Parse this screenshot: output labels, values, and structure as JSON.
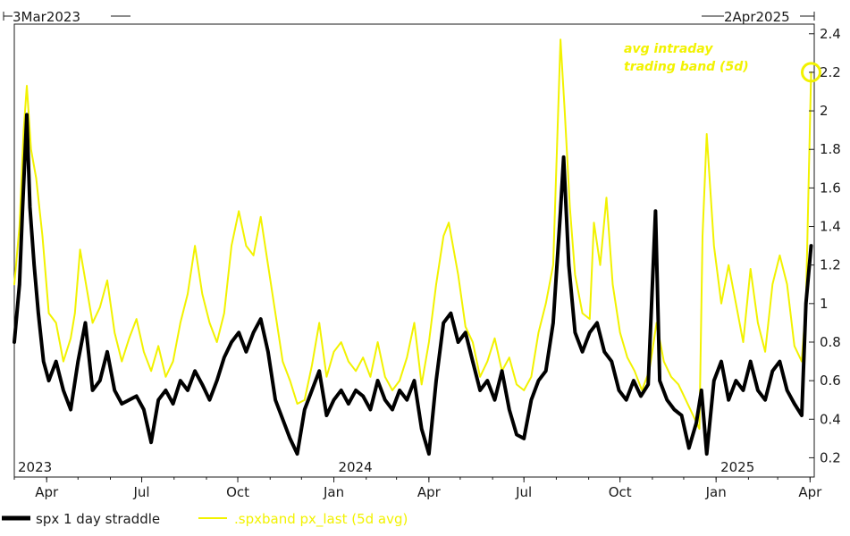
{
  "chart_data": {
    "type": "line",
    "title": "",
    "xlabel": "",
    "ylabel": "",
    "range_start_label": "3Mar2023",
    "range_end_label": "2Apr2025",
    "ylim": [
      0.1,
      2.45
    ],
    "y_ticks": [
      0.2,
      0.4,
      0.6,
      0.8,
      1,
      1.2,
      1.4,
      1.6,
      1.8,
      2,
      2.2,
      2.4
    ],
    "y_tick_labels": [
      "0.2",
      "0.4",
      "0.6",
      "0.8",
      "1",
      "1.2",
      "1.4",
      "1.6",
      "1.8",
      "2",
      "2.2",
      "2.4"
    ],
    "x_axis": {
      "start": "2023-03-01",
      "end": "2025-04-05",
      "month_ticks": [
        {
          "date": "2023-04-01",
          "label": "Apr"
        },
        {
          "date": "2023-07-01",
          "label": "Jul"
        },
        {
          "date": "2023-10-01",
          "label": "Oct"
        },
        {
          "date": "2024-01-01",
          "label": "Jan"
        },
        {
          "date": "2024-04-01",
          "label": "Apr"
        },
        {
          "date": "2024-07-01",
          "label": "Jul"
        },
        {
          "date": "2024-10-01",
          "label": "Oct"
        },
        {
          "date": "2025-01-01",
          "label": "Jan"
        },
        {
          "date": "2025-04-01",
          "label": "Apr"
        }
      ],
      "year_labels": [
        {
          "date": "2023-03-01",
          "label": "2023"
        },
        {
          "date": "2024-01-01",
          "label": "2024"
        },
        {
          "date": "2025-01-01",
          "label": "2025"
        }
      ]
    },
    "grid": false,
    "legend_position": "bottom",
    "annotation": {
      "line1": "avg intraday",
      "line2": "trading band (5d)",
      "series": ".spxband px_last (5d avg)",
      "date": "2025-04-02",
      "value": 2.2
    },
    "series": [
      {
        "name": ".spxband px_last (5d avg)",
        "color": "#f2f200",
        "points": [
          [
            "2023-03-01",
            1.1
          ],
          [
            "2023-03-06",
            1.4
          ],
          [
            "2023-03-10",
            1.9
          ],
          [
            "2023-03-13",
            2.13
          ],
          [
            "2023-03-17",
            1.8
          ],
          [
            "2023-03-22",
            1.65
          ],
          [
            "2023-03-28",
            1.35
          ],
          [
            "2023-04-03",
            0.95
          ],
          [
            "2023-04-10",
            0.9
          ],
          [
            "2023-04-17",
            0.7
          ],
          [
            "2023-04-24",
            0.82
          ],
          [
            "2023-04-28",
            0.95
          ],
          [
            "2023-05-03",
            1.28
          ],
          [
            "2023-05-08",
            1.12
          ],
          [
            "2023-05-15",
            0.9
          ],
          [
            "2023-05-22",
            0.98
          ],
          [
            "2023-05-29",
            1.12
          ],
          [
            "2023-06-05",
            0.85
          ],
          [
            "2023-06-12",
            0.7
          ],
          [
            "2023-06-19",
            0.82
          ],
          [
            "2023-06-26",
            0.92
          ],
          [
            "2023-07-03",
            0.75
          ],
          [
            "2023-07-10",
            0.65
          ],
          [
            "2023-07-17",
            0.78
          ],
          [
            "2023-07-24",
            0.62
          ],
          [
            "2023-07-31",
            0.7
          ],
          [
            "2023-08-07",
            0.9
          ],
          [
            "2023-08-14",
            1.05
          ],
          [
            "2023-08-21",
            1.3
          ],
          [
            "2023-08-28",
            1.05
          ],
          [
            "2023-09-04",
            0.9
          ],
          [
            "2023-09-11",
            0.8
          ],
          [
            "2023-09-18",
            0.95
          ],
          [
            "2023-09-25",
            1.3
          ],
          [
            "2023-10-02",
            1.48
          ],
          [
            "2023-10-09",
            1.3
          ],
          [
            "2023-10-16",
            1.25
          ],
          [
            "2023-10-23",
            1.45
          ],
          [
            "2023-10-30",
            1.2
          ],
          [
            "2023-11-06",
            0.95
          ],
          [
            "2023-11-13",
            0.7
          ],
          [
            "2023-11-20",
            0.6
          ],
          [
            "2023-11-27",
            0.48
          ],
          [
            "2023-12-04",
            0.5
          ],
          [
            "2023-12-11",
            0.68
          ],
          [
            "2023-12-18",
            0.9
          ],
          [
            "2023-12-25",
            0.62
          ],
          [
            "2024-01-01",
            0.75
          ],
          [
            "2024-01-08",
            0.8
          ],
          [
            "2024-01-15",
            0.7
          ],
          [
            "2024-01-22",
            0.65
          ],
          [
            "2024-01-29",
            0.72
          ],
          [
            "2024-02-05",
            0.62
          ],
          [
            "2024-02-12",
            0.8
          ],
          [
            "2024-02-19",
            0.62
          ],
          [
            "2024-02-26",
            0.55
          ],
          [
            "2024-03-04",
            0.6
          ],
          [
            "2024-03-11",
            0.72
          ],
          [
            "2024-03-18",
            0.9
          ],
          [
            "2024-03-25",
            0.58
          ],
          [
            "2024-04-01",
            0.8
          ],
          [
            "2024-04-08",
            1.1
          ],
          [
            "2024-04-15",
            1.35
          ],
          [
            "2024-04-20",
            1.42
          ],
          [
            "2024-04-29",
            1.15
          ],
          [
            "2024-05-06",
            0.88
          ],
          [
            "2024-05-13",
            0.8
          ],
          [
            "2024-05-20",
            0.62
          ],
          [
            "2024-05-27",
            0.7
          ],
          [
            "2024-06-03",
            0.82
          ],
          [
            "2024-06-10",
            0.65
          ],
          [
            "2024-06-17",
            0.72
          ],
          [
            "2024-06-24",
            0.58
          ],
          [
            "2024-07-01",
            0.55
          ],
          [
            "2024-07-08",
            0.62
          ],
          [
            "2024-07-15",
            0.85
          ],
          [
            "2024-07-22",
            1.0
          ],
          [
            "2024-07-29",
            1.2
          ],
          [
            "2024-08-05",
            2.37
          ],
          [
            "2024-08-09",
            2.0
          ],
          [
            "2024-08-14",
            1.5
          ],
          [
            "2024-08-19",
            1.15
          ],
          [
            "2024-08-26",
            0.95
          ],
          [
            "2024-09-02",
            0.92
          ],
          [
            "2024-09-06",
            1.42
          ],
          [
            "2024-09-12",
            1.2
          ],
          [
            "2024-09-18",
            1.55
          ],
          [
            "2024-09-24",
            1.1
          ],
          [
            "2024-10-01",
            0.85
          ],
          [
            "2024-10-08",
            0.72
          ],
          [
            "2024-10-15",
            0.65
          ],
          [
            "2024-10-22",
            0.55
          ],
          [
            "2024-10-29",
            0.65
          ],
          [
            "2024-11-05",
            0.9
          ],
          [
            "2024-11-12",
            0.7
          ],
          [
            "2024-11-19",
            0.62
          ],
          [
            "2024-11-26",
            0.58
          ],
          [
            "2024-12-03",
            0.5
          ],
          [
            "2024-12-10",
            0.42
          ],
          [
            "2024-12-16",
            0.35
          ],
          [
            "2024-12-19",
            1.35
          ],
          [
            "2024-12-23",
            1.88
          ],
          [
            "2024-12-30",
            1.3
          ],
          [
            "2025-01-06",
            1.0
          ],
          [
            "2025-01-13",
            1.2
          ],
          [
            "2025-01-20",
            1.0
          ],
          [
            "2025-01-27",
            0.8
          ],
          [
            "2025-02-03",
            1.18
          ],
          [
            "2025-02-10",
            0.9
          ],
          [
            "2025-02-17",
            0.75
          ],
          [
            "2025-02-24",
            1.1
          ],
          [
            "2025-03-03",
            1.25
          ],
          [
            "2025-03-10",
            1.1
          ],
          [
            "2025-03-17",
            0.78
          ],
          [
            "2025-03-24",
            0.7
          ],
          [
            "2025-03-28",
            1.0
          ],
          [
            "2025-04-02",
            2.2
          ]
        ]
      },
      {
        "name": "spx 1 day straddle",
        "color": "#000000",
        "points": [
          [
            "2023-03-01",
            0.8
          ],
          [
            "2023-03-06",
            1.1
          ],
          [
            "2023-03-09",
            1.5
          ],
          [
            "2023-03-13",
            1.98
          ],
          [
            "2023-03-16",
            1.5
          ],
          [
            "2023-03-20",
            1.2
          ],
          [
            "2023-03-24",
            0.95
          ],
          [
            "2023-03-29",
            0.7
          ],
          [
            "2023-04-03",
            0.6
          ],
          [
            "2023-04-10",
            0.7
          ],
          [
            "2023-04-17",
            0.55
          ],
          [
            "2023-04-24",
            0.45
          ],
          [
            "2023-05-01",
            0.7
          ],
          [
            "2023-05-08",
            0.9
          ],
          [
            "2023-05-15",
            0.55
          ],
          [
            "2023-05-22",
            0.6
          ],
          [
            "2023-05-29",
            0.75
          ],
          [
            "2023-06-05",
            0.55
          ],
          [
            "2023-06-12",
            0.48
          ],
          [
            "2023-06-19",
            0.5
          ],
          [
            "2023-06-26",
            0.52
          ],
          [
            "2023-07-03",
            0.45
          ],
          [
            "2023-07-10",
            0.28
          ],
          [
            "2023-07-17",
            0.5
          ],
          [
            "2023-07-24",
            0.55
          ],
          [
            "2023-07-31",
            0.48
          ],
          [
            "2023-08-07",
            0.6
          ],
          [
            "2023-08-14",
            0.55
          ],
          [
            "2023-08-21",
            0.65
          ],
          [
            "2023-08-28",
            0.58
          ],
          [
            "2023-09-04",
            0.5
          ],
          [
            "2023-09-11",
            0.6
          ],
          [
            "2023-09-18",
            0.72
          ],
          [
            "2023-09-25",
            0.8
          ],
          [
            "2023-10-02",
            0.85
          ],
          [
            "2023-10-09",
            0.75
          ],
          [
            "2023-10-16",
            0.85
          ],
          [
            "2023-10-23",
            0.92
          ],
          [
            "2023-10-30",
            0.75
          ],
          [
            "2023-11-06",
            0.5
          ],
          [
            "2023-11-13",
            0.4
          ],
          [
            "2023-11-20",
            0.3
          ],
          [
            "2023-11-27",
            0.22
          ],
          [
            "2023-12-04",
            0.45
          ],
          [
            "2023-12-11",
            0.55
          ],
          [
            "2023-12-18",
            0.65
          ],
          [
            "2023-12-25",
            0.42
          ],
          [
            "2024-01-01",
            0.5
          ],
          [
            "2024-01-08",
            0.55
          ],
          [
            "2024-01-15",
            0.48
          ],
          [
            "2024-01-22",
            0.55
          ],
          [
            "2024-01-29",
            0.52
          ],
          [
            "2024-02-05",
            0.45
          ],
          [
            "2024-02-12",
            0.6
          ],
          [
            "2024-02-19",
            0.5
          ],
          [
            "2024-02-26",
            0.45
          ],
          [
            "2024-03-04",
            0.55
          ],
          [
            "2024-03-11",
            0.5
          ],
          [
            "2024-03-18",
            0.6
          ],
          [
            "2024-03-25",
            0.35
          ],
          [
            "2024-04-01",
            0.22
          ],
          [
            "2024-04-08",
            0.6
          ],
          [
            "2024-04-15",
            0.9
          ],
          [
            "2024-04-22",
            0.95
          ],
          [
            "2024-04-29",
            0.8
          ],
          [
            "2024-05-06",
            0.85
          ],
          [
            "2024-05-13",
            0.7
          ],
          [
            "2024-05-20",
            0.55
          ],
          [
            "2024-05-27",
            0.6
          ],
          [
            "2024-06-03",
            0.5
          ],
          [
            "2024-06-10",
            0.65
          ],
          [
            "2024-06-17",
            0.45
          ],
          [
            "2024-06-24",
            0.32
          ],
          [
            "2024-07-01",
            0.3
          ],
          [
            "2024-07-08",
            0.5
          ],
          [
            "2024-07-15",
            0.6
          ],
          [
            "2024-07-22",
            0.65
          ],
          [
            "2024-07-29",
            0.9
          ],
          [
            "2024-08-05",
            1.48
          ],
          [
            "2024-08-08",
            1.76
          ],
          [
            "2024-08-13",
            1.2
          ],
          [
            "2024-08-19",
            0.85
          ],
          [
            "2024-08-26",
            0.75
          ],
          [
            "2024-09-02",
            0.85
          ],
          [
            "2024-09-09",
            0.9
          ],
          [
            "2024-09-16",
            0.75
          ],
          [
            "2024-09-23",
            0.7
          ],
          [
            "2024-09-30",
            0.55
          ],
          [
            "2024-10-07",
            0.5
          ],
          [
            "2024-10-14",
            0.6
          ],
          [
            "2024-10-21",
            0.52
          ],
          [
            "2024-10-28",
            0.58
          ],
          [
            "2024-11-04",
            1.48
          ],
          [
            "2024-11-08",
            0.6
          ],
          [
            "2024-11-15",
            0.5
          ],
          [
            "2024-11-22",
            0.45
          ],
          [
            "2024-11-29",
            0.42
          ],
          [
            "2024-12-06",
            0.25
          ],
          [
            "2024-12-13",
            0.38
          ],
          [
            "2024-12-18",
            0.55
          ],
          [
            "2024-12-23",
            0.22
          ],
          [
            "2024-12-30",
            0.6
          ],
          [
            "2025-01-06",
            0.7
          ],
          [
            "2025-01-13",
            0.5
          ],
          [
            "2025-01-20",
            0.6
          ],
          [
            "2025-01-27",
            0.55
          ],
          [
            "2025-02-03",
            0.7
          ],
          [
            "2025-02-10",
            0.55
          ],
          [
            "2025-02-17",
            0.5
          ],
          [
            "2025-02-24",
            0.65
          ],
          [
            "2025-03-03",
            0.7
          ],
          [
            "2025-03-10",
            0.55
          ],
          [
            "2025-03-17",
            0.48
          ],
          [
            "2025-03-24",
            0.42
          ],
          [
            "2025-03-28",
            1.0
          ],
          [
            "2025-04-02",
            1.3
          ]
        ]
      }
    ],
    "legend": [
      {
        "label": "spx 1 day straddle",
        "color": "#000000"
      },
      {
        "label": ".spxband px_last (5d avg)",
        "color": "#f2f200"
      }
    ]
  }
}
